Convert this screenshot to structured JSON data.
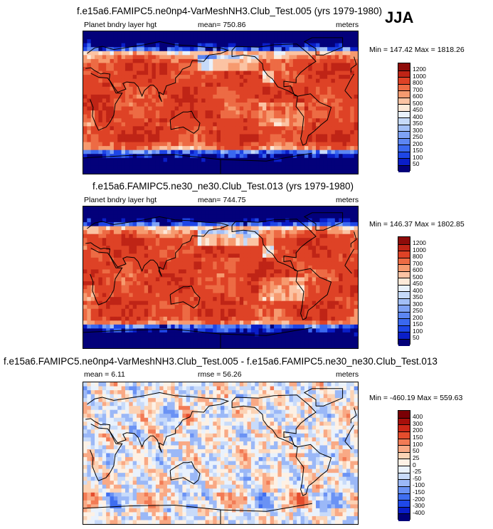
{
  "season": "JJA",
  "panels": [
    {
      "id": "p1",
      "title": "f.e15a6.FAMIPC5.ne0np4-VarMeshNH3.Club_Test.005 (yrs 1979-1980)",
      "left_label": "Planet bndry layer hgt",
      "center_label": "mean= 750.86",
      "units": "meters",
      "minmax": "Min = 147.42 Max = 1818.26",
      "scale": "abs",
      "pattern": 1,
      "levels": [
        "50",
        "100",
        "150",
        "200",
        "250",
        "300",
        "350",
        "400",
        "450",
        "500",
        "600",
        "700",
        "800",
        "1000",
        "1200"
      ]
    },
    {
      "id": "p2",
      "title": "f.e15a6.FAMIPC5.ne30_ne30.Club_Test.013 (yrs 1979-1980)",
      "left_label": "Planet bndry layer hgt",
      "center_label": "mean= 744.75",
      "units": "meters",
      "minmax": "Min = 146.37 Max = 1802.85",
      "scale": "abs",
      "pattern": 2,
      "levels": [
        "50",
        "100",
        "150",
        "200",
        "250",
        "300",
        "350",
        "400",
        "450",
        "500",
        "600",
        "700",
        "800",
        "1000",
        "1200"
      ]
    },
    {
      "id": "p3",
      "title": "f.e15a6.FAMIPC5.ne0np4-VarMeshNH3.Club_Test.005 - f.e15a6.FAMIPC5.ne30_ne30.Club_Test.013",
      "left_label": "mean =    6.11",
      "center_label": "rmse =   56.26",
      "units": "meters",
      "minmax": "Min = -460.19 Max = 559.63",
      "scale": "diff",
      "pattern": 3,
      "levels": [
        "-400",
        "-300",
        "-200",
        "-150",
        "-100",
        "-50",
        "-25",
        "0",
        "25",
        "50",
        "100",
        "150",
        "200",
        "300",
        "400"
      ]
    }
  ],
  "colors": {
    "abs": [
      "#03007a",
      "#0a1ec8",
      "#1e46e6",
      "#3a68ef",
      "#5c86f2",
      "#7ea2f5",
      "#a2bff7",
      "#c6daf9",
      "#e9f1fb",
      "#fde9d8",
      "#fbc3a3",
      "#f69a6f",
      "#ed6b44",
      "#de4226",
      "#bf2416",
      "#8e0c0a"
    ],
    "diff": [
      "#00007a",
      "#0a1ec8",
      "#1f48e8",
      "#3f6ef0",
      "#6a92f4",
      "#9bb8f7",
      "#c8dbfa",
      "#eaf2fc",
      "#fdf1e5",
      "#fcd3b5",
      "#f9a985",
      "#f27b55",
      "#e44c2d",
      "#cc2718",
      "#a60f0b",
      "#7a0005"
    ]
  }
}
